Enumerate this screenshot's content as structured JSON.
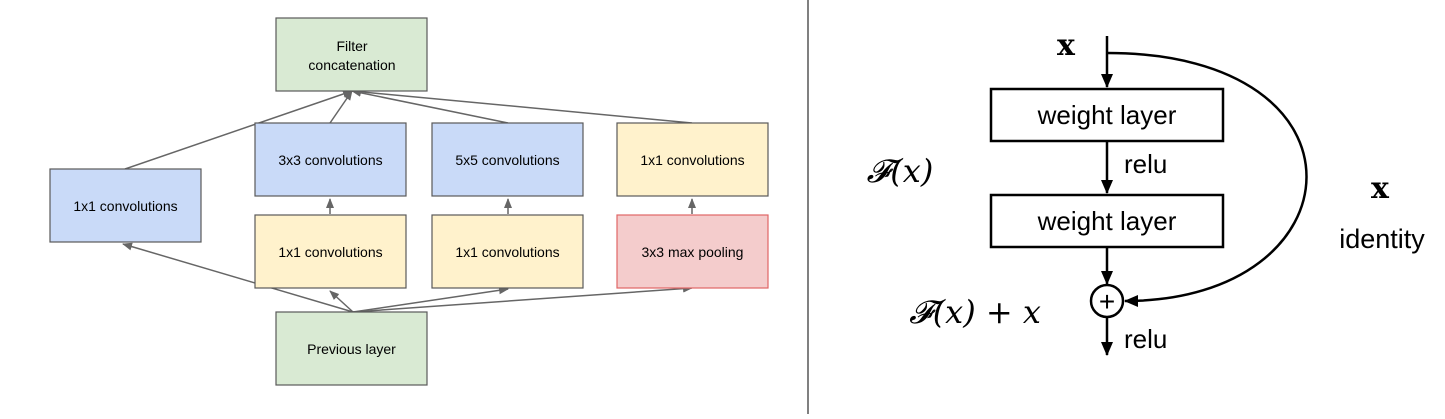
{
  "inception": {
    "filter_concat": [
      "Filter",
      "concatenation"
    ],
    "conv1x1_left": "1x1 convolutions",
    "conv3x3": "3x3 convolutions",
    "conv5x5": "5x5 convolutions",
    "conv1x1_right": "1x1 convolutions",
    "reduce1x1_a": "1x1 convolutions",
    "reduce1x1_b": "1x1 convolutions",
    "maxpool": "3x3 max pooling",
    "previous_layer": "Previous layer",
    "colors": {
      "green_fill": "#d9ead3",
      "blue_fill": "#c9daf8",
      "yellow_fill": "#fff2cc",
      "red_fill": "#f4cccc",
      "red_stroke": "#e06666",
      "box_stroke": "#595959",
      "arrow": "#666666"
    }
  },
  "residual": {
    "input_x": "x",
    "weight_layer_1": "weight layer",
    "relu_mid": "relu",
    "weight_layer_2": "weight layer",
    "relu_out": "relu",
    "fx": "𝓕(x)",
    "fx_plus_x": "𝓕(x) + x",
    "identity_x": "x",
    "identity_label": "identity",
    "plus": "+"
  }
}
